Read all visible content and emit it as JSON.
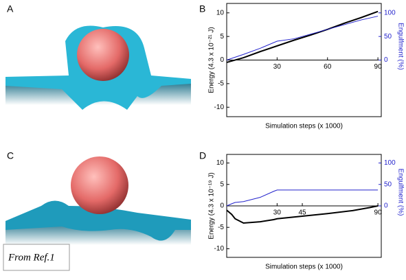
{
  "panel_labels": [
    "A",
    "B",
    "C",
    "D"
  ],
  "note": "From Ref.1",
  "chart_data": [
    {
      "type": "line",
      "xlabel": "Simulation steps (x 1000)",
      "ylabel": "Energy (4.3 x 10⁻²¹ J)",
      "y2label": "Engulfment (%)",
      "xlim": [
        0,
        92
      ],
      "xticks": [
        30,
        60,
        90
      ],
      "ylim": [
        -12,
        12
      ],
      "yticks": [
        -10,
        -5,
        0,
        5,
        10
      ],
      "y2lim": [
        -120,
        120
      ],
      "y2ticks": [
        0,
        50,
        100
      ],
      "x": [
        0,
        10,
        20,
        30,
        40,
        50,
        60,
        70,
        80,
        90
      ],
      "series": [
        {
          "color": "#000000",
          "values": [
            -0.5,
            0.5,
            1.8,
            3,
            4.2,
            5.3,
            6.5,
            7.8,
            9,
            10.3
          ]
        },
        {
          "color": "#2222cc",
          "axis": "y2",
          "values": [
            0,
            12,
            25,
            40,
            45,
            55,
            65,
            75,
            85,
            93
          ]
        }
      ]
    },
    {
      "type": "line",
      "xlabel": "Simulation steps (x 1000)",
      "ylabel": "Energy (4.3 x 10⁻¹⁹ J)",
      "y2label": "Engulfment (%)",
      "xlim": [
        0,
        92
      ],
      "xticks": [
        30,
        45,
        90
      ],
      "ylim": [
        -12,
        12
      ],
      "yticks": [
        -10,
        -5,
        0,
        5,
        10
      ],
      "y2lim": [
        -120,
        120
      ],
      "y2ticks": [
        0,
        50,
        100
      ],
      "x": [
        0,
        3,
        5,
        10,
        20,
        28,
        30,
        45,
        60,
        75,
        85,
        90
      ],
      "series": [
        {
          "color": "#000000",
          "values": [
            -1,
            -2,
            -3,
            -4,
            -3.7,
            -3.2,
            -3,
            -2.4,
            -1.8,
            -1.1,
            -0.4,
            0
          ]
        },
        {
          "color": "#2222cc",
          "axis": "y2",
          "values": [
            0,
            5,
            8,
            10,
            20,
            34,
            37,
            37,
            37,
            37,
            37,
            37
          ]
        }
      ]
    }
  ]
}
